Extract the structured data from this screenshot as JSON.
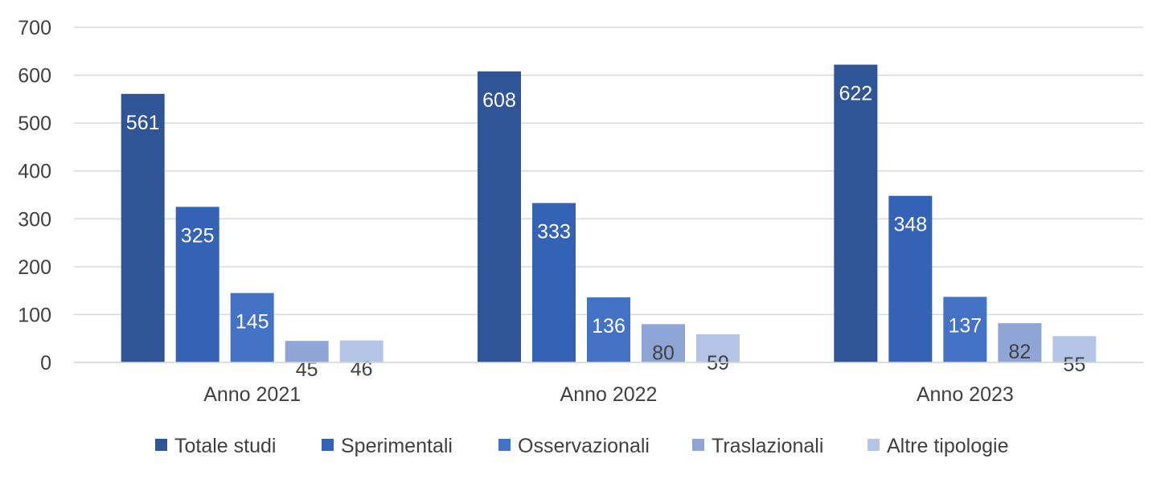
{
  "chart_data": {
    "type": "bar",
    "categories": [
      "Anno 2021",
      "Anno 2022",
      "Anno 2023"
    ],
    "series": [
      {
        "name": "Totale studi",
        "values": [
          561,
          608,
          622
        ]
      },
      {
        "name": "Sperimentali",
        "values": [
          325,
          333,
          348
        ]
      },
      {
        "name": "Osservazionali",
        "values": [
          145,
          136,
          137
        ]
      },
      {
        "name": "Traslazionali",
        "values": [
          45,
          80,
          82
        ]
      },
      {
        "name": "Altre tipologie",
        "values": [
          46,
          59,
          55
        ]
      }
    ],
    "yticks": [
      "0",
      "100",
      "200",
      "300",
      "400",
      "500",
      "600",
      "700"
    ],
    "ylim": [
      0,
      700
    ],
    "grid": true,
    "legend": "bottom",
    "colors": [
      "#2f5597",
      "#3462b4",
      "#4472c4",
      "#8fa5d6",
      "#b4c4e7"
    ],
    "label_colors": [
      "#ffffff",
      "#ffffff",
      "#ffffff",
      "#404040",
      "#404040"
    ]
  }
}
